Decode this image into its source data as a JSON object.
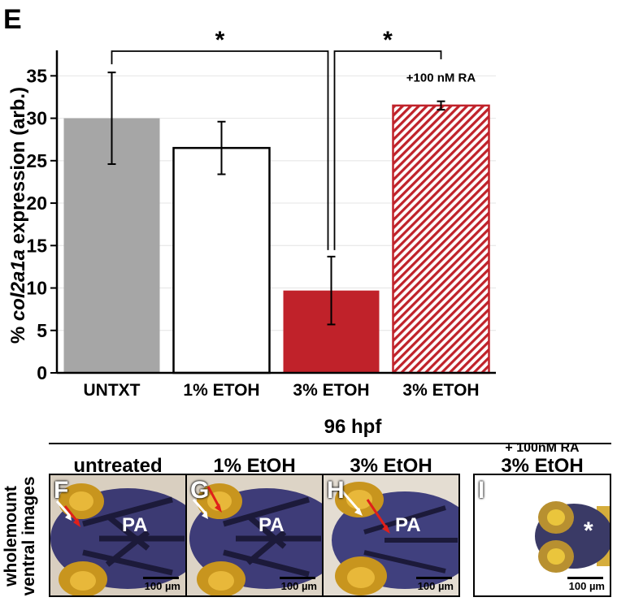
{
  "figure_labels": {
    "panel_e": "E"
  },
  "chart_data": {
    "type": "bar",
    "categories": [
      "UNTXT",
      "1% ETOH",
      "3% ETOH",
      "3% ETOH"
    ],
    "values": [
      30,
      26.5,
      9.7,
      31.5
    ],
    "errors": [
      5.4,
      3.1,
      4.0,
      0.5
    ],
    "ylabel_prefix": "% ",
    "ylabel_gene": "col2a1a",
    "ylabel_suffix": " expression (arb.)",
    "ylim": [
      0,
      38
    ],
    "yticks": [
      0,
      5,
      10,
      15,
      20,
      25,
      30,
      35
    ],
    "grid": true,
    "colors": {
      "untxt": "#a6a6a6",
      "etoh1": "#ffffff",
      "etoh3": "#c0222a",
      "etoh3_ra": "#c0222a"
    },
    "bar_annotation": "+100 nM RA",
    "significance": [
      {
        "between": [
          0,
          2
        ],
        "label": "*"
      },
      {
        "between": [
          2,
          3
        ],
        "label": "*"
      }
    ]
  },
  "lower": {
    "heading": "96 hpf",
    "side_label_line1": "wholemount",
    "side_label_line2": "ventral images",
    "panels": [
      {
        "letter": "F",
        "title": "untreated",
        "title2": "",
        "label": "PA",
        "scale": "100 µm"
      },
      {
        "letter": "G",
        "title": "1% EtOH",
        "title2": "",
        "label": "PA",
        "scale": "100 µm"
      },
      {
        "letter": "H",
        "title": "3% EtOH",
        "title2": "",
        "label": "PA",
        "scale": "100 µm"
      },
      {
        "letter": "I",
        "title": "3% EtOH",
        "title2": "+ 100nM RA",
        "label": "*",
        "scale": "100 µm"
      }
    ]
  }
}
